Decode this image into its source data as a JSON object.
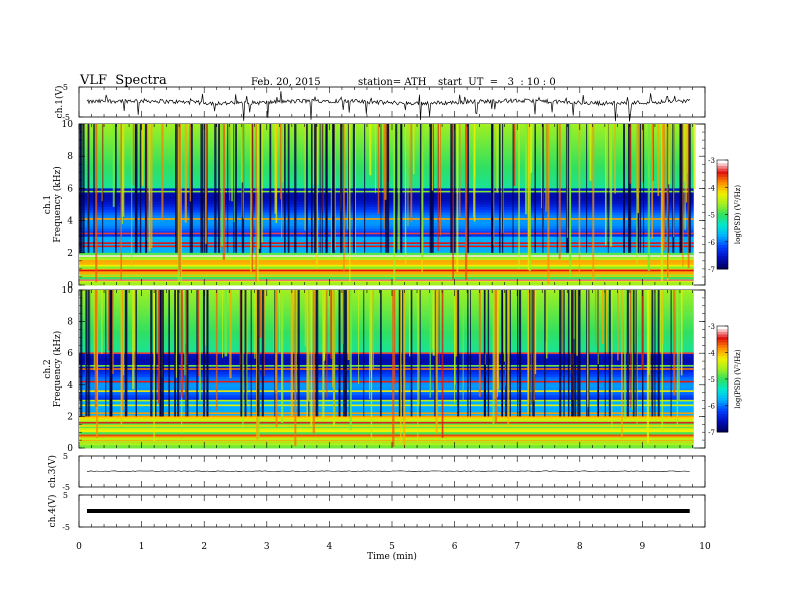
{
  "header": {
    "title": "VLF  Spectra",
    "date": "Feb. 20, 2015",
    "station": "station= ATH",
    "start": "start  UT  =   3  : 10 : 0"
  },
  "chart_data": [
    {
      "type": "line",
      "ylabel": "ch.1(V)",
      "ylim": [
        -5,
        5
      ],
      "yticks": [
        "5",
        "-5"
      ],
      "note": "noisy waveform near 0 V with occasional negative spikes"
    },
    {
      "type": "heatmap",
      "ylabel": "ch.1\nFrequency  (kHz)",
      "ylim": [
        0,
        10
      ],
      "yticks": [
        0,
        2,
        4,
        6,
        8,
        10
      ],
      "colorbar": {
        "label": "log(PSD) (V²/Hz)",
        "ticks": [
          -3,
          -4,
          -5,
          -6,
          -7
        ],
        "range": [
          -7,
          -3
        ]
      },
      "note": "broadband bursts (vertical streaks) up to 10 kHz; strong narrowband lines below 2 kHz"
    },
    {
      "type": "heatmap",
      "ylabel": "ch.2\nFrequency  (kHz)",
      "ylim": [
        0,
        10
      ],
      "yticks": [
        0,
        2,
        4,
        6,
        8,
        10
      ],
      "colorbar": {
        "label": "log(PSD) (V²/Hz)",
        "ticks": [
          -3,
          -4,
          -5,
          -6,
          -7
        ],
        "range": [
          -7,
          -3
        ]
      }
    },
    {
      "type": "line",
      "ylabel": "ch.3(V)",
      "ylim": [
        -5,
        5
      ],
      "yticks": [
        "5",
        "-5"
      ]
    },
    {
      "type": "line",
      "ylabel": "ch.4(V)",
      "ylim": [
        -5,
        5
      ],
      "yticks": [
        "5",
        "-5"
      ]
    }
  ],
  "xaxis": {
    "label": "Time  (min)",
    "ticks": [
      0,
      1,
      2,
      3,
      4,
      5,
      6,
      7,
      8,
      9,
      10
    ],
    "xlim": [
      0,
      10
    ],
    "data_end": 9.82
  },
  "colors": {
    "colormap": [
      "#000060",
      "#0010c0",
      "#0040ff",
      "#00b0ff",
      "#00e8d0",
      "#30e060",
      "#a0f020",
      "#f0f000",
      "#ff9000",
      "#e01010",
      "#ffffff"
    ]
  }
}
